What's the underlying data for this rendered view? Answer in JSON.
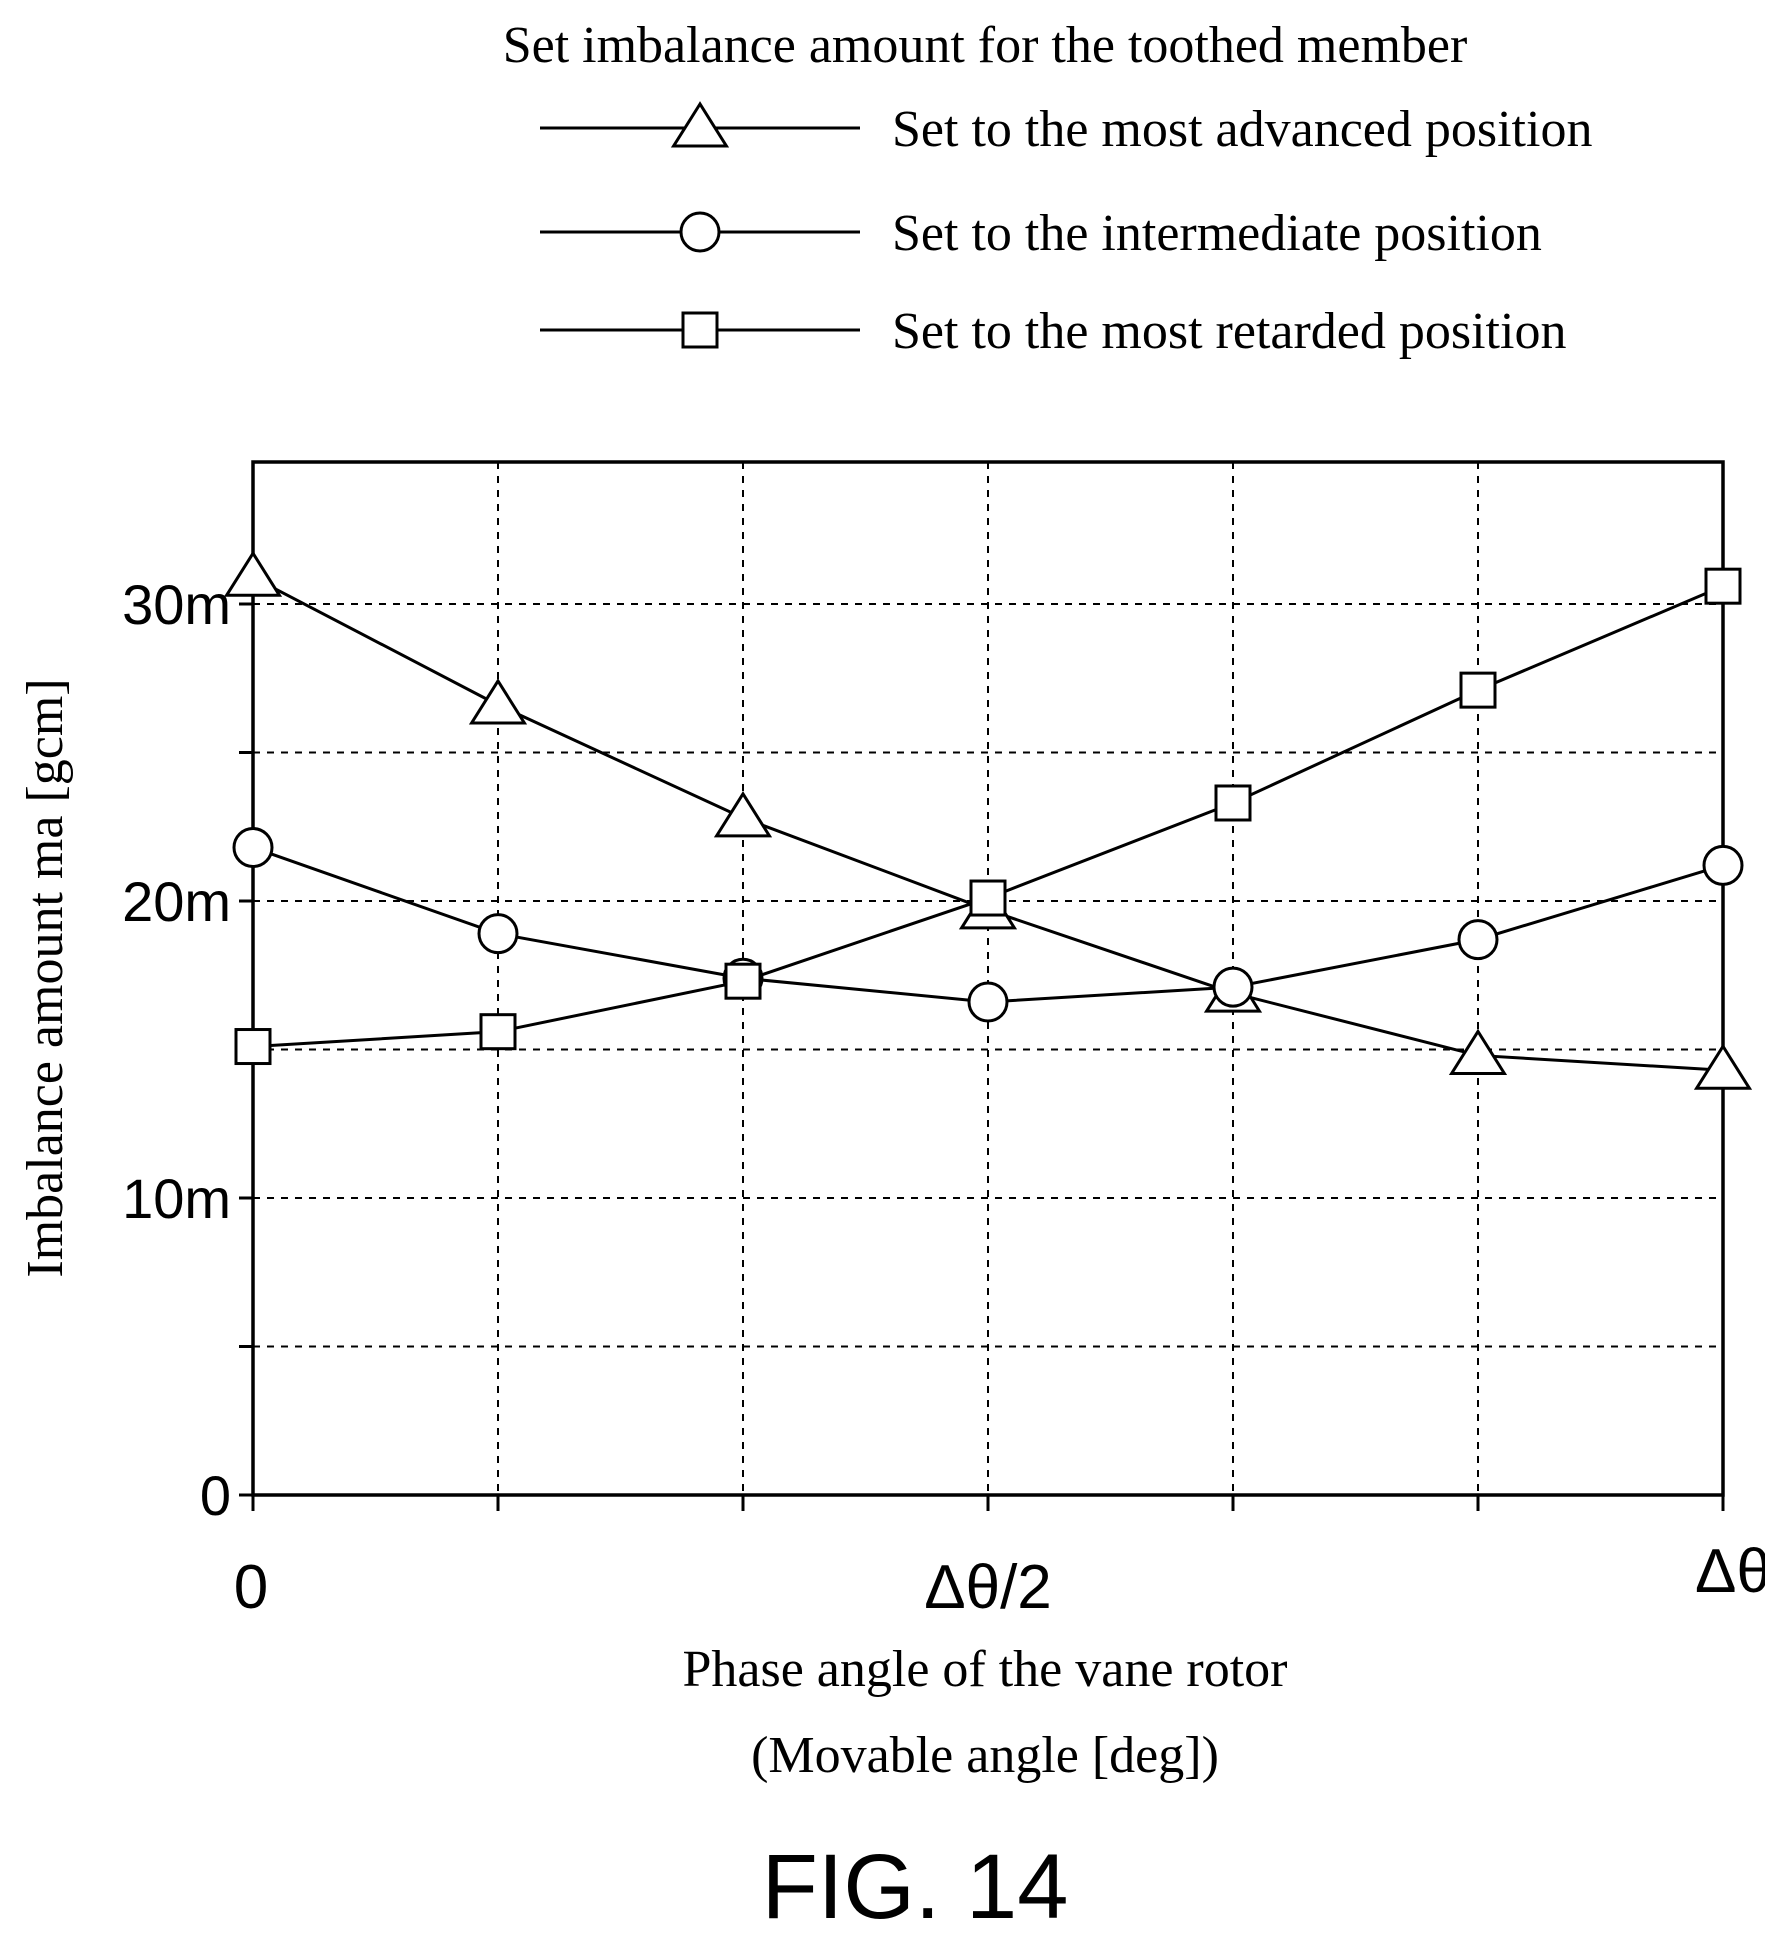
{
  "chart_data": {
    "type": "line",
    "title": "Set imbalance amount for the toothed member",
    "xlabel_line1": "Phase angle of the vane rotor",
    "xlabel_line2": "(Movable angle [deg])",
    "ylabel": "Imbalance amount ma [gcm]",
    "x": [
      0,
      1,
      2,
      3,
      4,
      5,
      6
    ],
    "x_ticks": [
      {
        "x": 0,
        "label": "0"
      },
      {
        "x": 3,
        "label": "Δθ/2"
      },
      {
        "x": 6,
        "label": "Δθ"
      }
    ],
    "y_ticks": [
      {
        "y": 0,
        "label": "0"
      },
      {
        "y": 10,
        "label": "10m"
      },
      {
        "y": 20,
        "label": "20m"
      },
      {
        "y": 30,
        "label": "30m"
      }
    ],
    "xlim": [
      0,
      6
    ],
    "ylim": [
      0,
      35
    ],
    "x_grid": [
      1,
      2,
      3,
      4,
      5
    ],
    "y_grid": [
      5,
      10,
      15,
      20,
      25,
      30
    ],
    "grid": true,
    "legend_position": "top",
    "series": [
      {
        "name": "Set to the most advanced position",
        "marker": "triangle",
        "values": [
          30.9,
          26.6,
          22.8,
          19.7,
          16.9,
          14.8,
          14.3
        ]
      },
      {
        "name": "Set to the intermediate position",
        "marker": "circle",
        "values": [
          21.8,
          18.9,
          17.4,
          16.6,
          17.1,
          18.7,
          21.2
        ]
      },
      {
        "name": "Set to the most retarded position",
        "marker": "square",
        "values": [
          15.1,
          15.6,
          17.3,
          20.1,
          23.3,
          27.1,
          30.6
        ]
      }
    ]
  },
  "figure_label": "FIG. 14"
}
